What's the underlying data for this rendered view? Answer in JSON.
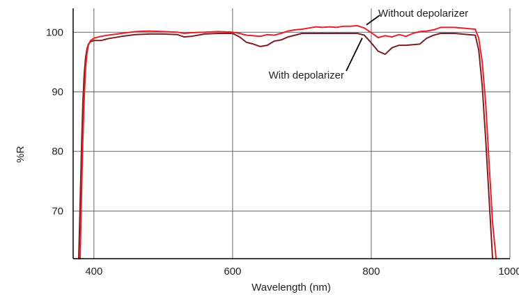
{
  "chart_data": {
    "type": "line",
    "title": "",
    "xlabel": "Wavelength (nm)",
    "ylabel": "%R",
    "xlim": [
      370,
      1000
    ],
    "ylim": [
      62,
      104
    ],
    "xticks": [
      400,
      600,
      800,
      1000
    ],
    "yticks": [
      70,
      80,
      90,
      100
    ],
    "xtick_labels": [
      "400",
      "600",
      "800",
      "1000"
    ],
    "ytick_labels": [
      "70",
      "80",
      "90",
      "100"
    ],
    "grid": true,
    "legend": "none",
    "annotations": [
      {
        "text": "Without depolarizer",
        "x": 793,
        "y": 101.0
      },
      {
        "text": "With depolarizer",
        "x": 790,
        "y": 99.5
      }
    ],
    "series": [
      {
        "name": "Without depolarizer",
        "color": "#e8202a",
        "x": [
          380,
          382,
          384,
          386,
          388,
          390,
          392,
          395,
          400,
          410,
          420,
          440,
          460,
          480,
          500,
          520,
          530,
          540,
          560,
          580,
          600,
          610,
          620,
          630,
          640,
          650,
          660,
          670,
          680,
          690,
          700,
          710,
          720,
          730,
          740,
          750,
          760,
          770,
          780,
          790,
          800,
          810,
          820,
          830,
          840,
          850,
          860,
          870,
          880,
          890,
          900,
          920,
          940,
          950,
          955,
          960,
          965,
          970,
          975,
          980
        ],
        "y": [
          62.0,
          72.0,
          82.0,
          89.0,
          94.0,
          96.5,
          97.8,
          98.6,
          99.0,
          99.3,
          99.5,
          99.8,
          100.1,
          100.2,
          100.1,
          100.0,
          99.8,
          99.9,
          100.0,
          100.1,
          100.0,
          99.8,
          99.5,
          99.4,
          99.3,
          99.6,
          99.5,
          99.8,
          100.2,
          100.4,
          100.5,
          100.7,
          100.9,
          100.8,
          100.9,
          100.8,
          101.0,
          101.0,
          101.1,
          100.7,
          99.9,
          99.1,
          99.4,
          99.2,
          99.6,
          99.3,
          99.8,
          100.1,
          100.2,
          100.4,
          100.8,
          100.8,
          100.6,
          100.5,
          99.0,
          95.0,
          88.0,
          78.0,
          68.0,
          62.0
        ]
      },
      {
        "name": "With depolarizer",
        "color": "#7a1e22",
        "x": [
          378,
          380,
          382,
          384,
          386,
          388,
          390,
          392,
          395,
          400,
          410,
          420,
          440,
          460,
          480,
          500,
          520,
          530,
          540,
          560,
          580,
          600,
          610,
          620,
          630,
          640,
          650,
          660,
          670,
          680,
          690,
          700,
          710,
          720,
          730,
          740,
          750,
          760,
          770,
          780,
          790,
          800,
          810,
          820,
          830,
          840,
          850,
          860,
          870,
          880,
          890,
          900,
          920,
          940,
          950,
          955,
          960,
          965,
          970,
          975
        ],
        "y": [
          62.0,
          71.0,
          80.0,
          88.0,
          93.0,
          95.8,
          97.2,
          98.0,
          98.4,
          98.6,
          98.6,
          98.9,
          99.3,
          99.6,
          99.7,
          99.7,
          99.6,
          99.2,
          99.3,
          99.7,
          99.8,
          99.8,
          99.2,
          98.3,
          98.0,
          97.6,
          97.8,
          98.5,
          98.7,
          99.2,
          99.5,
          99.8,
          99.8,
          99.8,
          99.8,
          99.8,
          99.8,
          99.8,
          99.8,
          99.8,
          99.5,
          98.2,
          96.8,
          96.3,
          97.4,
          97.8,
          97.8,
          97.9,
          98.0,
          99.0,
          99.5,
          99.8,
          99.8,
          99.6,
          99.5,
          97.0,
          91.0,
          82.0,
          72.0,
          62.0
        ]
      }
    ]
  }
}
